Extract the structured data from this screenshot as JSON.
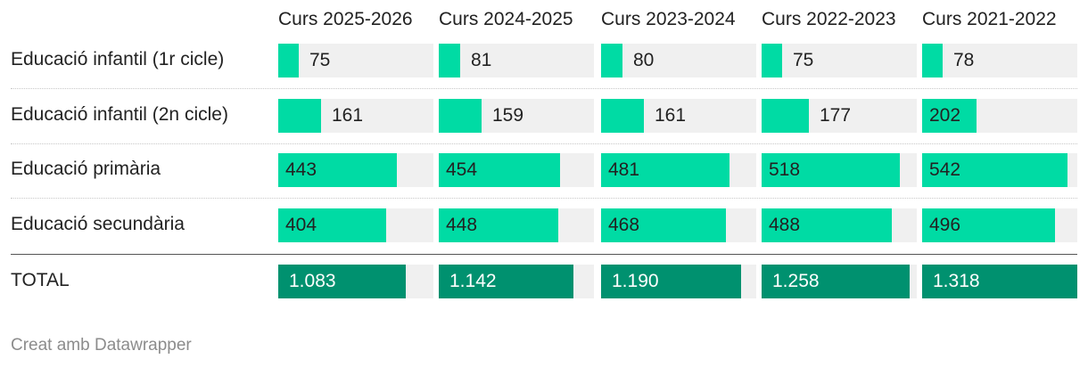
{
  "chart_data": {
    "type": "table",
    "columns": [
      "Curs 2025-2026",
      "Curs 2024-2025",
      "Curs 2023-2024",
      "Curs 2022-2023",
      "Curs 2021-2022"
    ],
    "rows": [
      {
        "label": "Educació infantil (1r cicle)",
        "values": [
          75,
          81,
          80,
          75,
          78
        ],
        "display": [
          "75",
          "81",
          "80",
          "75",
          "78"
        ],
        "total": false
      },
      {
        "label": "Educació infantil (2n cicle)",
        "values": [
          161,
          159,
          161,
          177,
          202
        ],
        "display": [
          "161",
          "159",
          "161",
          "177",
          "202"
        ],
        "total": false
      },
      {
        "label": "Educació primària",
        "values": [
          443,
          454,
          481,
          518,
          542
        ],
        "display": [
          "443",
          "454",
          "481",
          "518",
          "542"
        ],
        "total": false
      },
      {
        "label": "Educació secundària",
        "values": [
          404,
          448,
          468,
          488,
          496
        ],
        "display": [
          "404",
          "448",
          "468",
          "488",
          "496"
        ],
        "total": false
      },
      {
        "label": "TOTAL",
        "values": [
          1083,
          1142,
          1190,
          1258,
          1318
        ],
        "display": [
          "1.083",
          "1.142",
          "1.190",
          "1.258",
          "1.318"
        ],
        "total": true
      }
    ],
    "scale_max_rows": 580,
    "scale_max_total": 1318
  },
  "colors": {
    "bar": "#00dba4",
    "bar_total": "#00916f",
    "cell_background": "#f0f0f0",
    "text": "#222222",
    "text_on_total": "#ffffff"
  },
  "footer": "Creat amb Datawrapper"
}
